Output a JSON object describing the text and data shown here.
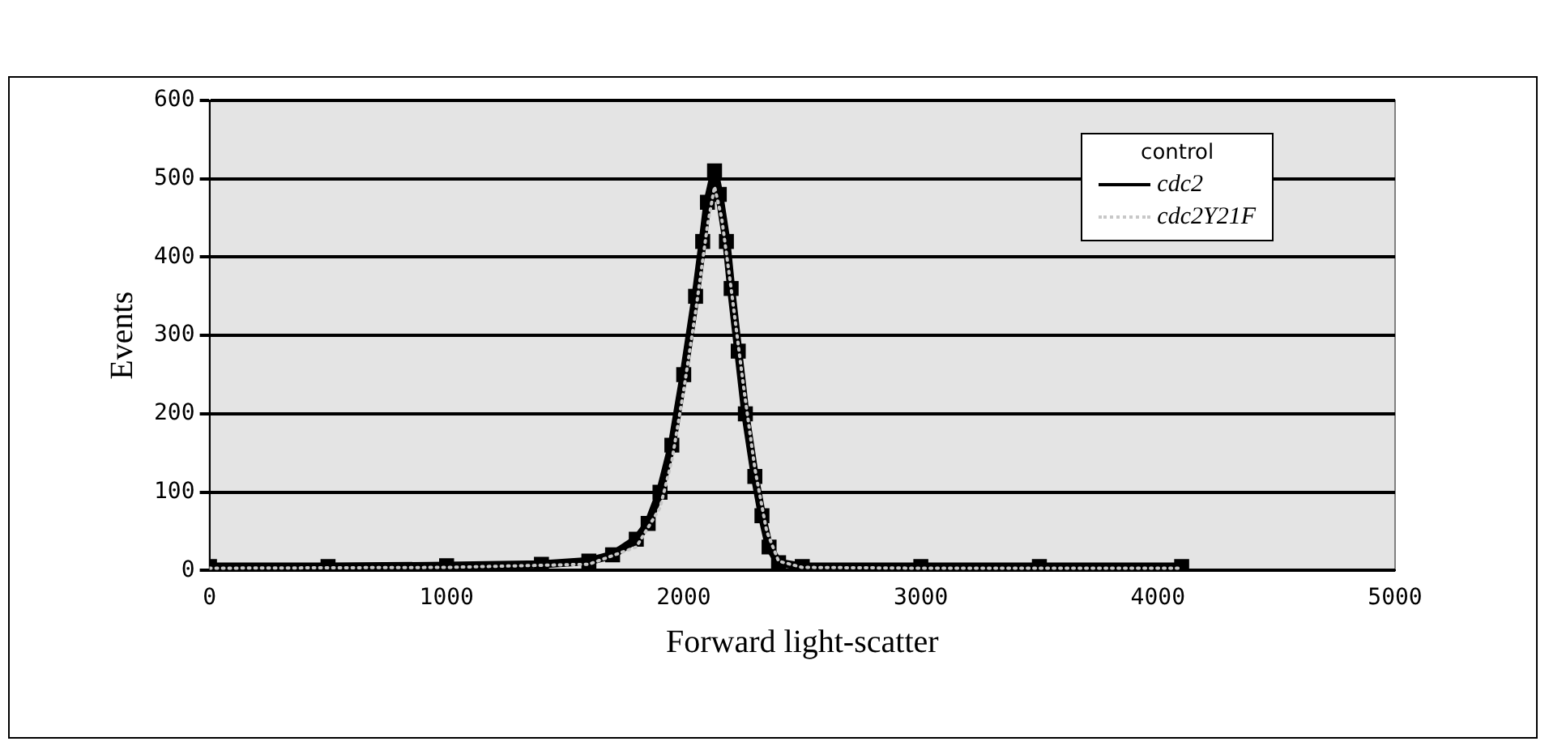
{
  "chart_data": {
    "type": "line",
    "xlabel": "Forward light-scatter",
    "ylabel": "Events",
    "legend_title": "control",
    "legend": "top right",
    "grid": "y",
    "xlim": [
      0,
      5000
    ],
    "xticks": [
      0,
      1000,
      2000,
      3000,
      4000,
      5000
    ],
    "ylim": [
      0,
      600
    ],
    "yticks": [
      0,
      100,
      200,
      300,
      400,
      500,
      600
    ],
    "series": [
      {
        "name": "cdc2",
        "color": "#000000",
        "marker": "square",
        "line_style": "solid",
        "x": [
          0,
          500,
          1000,
          1400,
          1600,
          1700,
          1800,
          1850,
          1900,
          1950,
          2000,
          2050,
          2080,
          2100,
          2130,
          2150,
          2180,
          2200,
          2230,
          2260,
          2300,
          2330,
          2360,
          2400,
          2500,
          3000,
          3500,
          4100
        ],
        "values": [
          5,
          5,
          6,
          8,
          12,
          20,
          40,
          60,
          100,
          160,
          250,
          350,
          420,
          470,
          510,
          480,
          420,
          360,
          280,
          200,
          120,
          70,
          30,
          10,
          5,
          5,
          5,
          5
        ]
      },
      {
        "name": "cdc2Y21F",
        "color": "#c8c8c8",
        "marker": "none",
        "line_style": "dotted",
        "x": [
          0,
          1000,
          1600,
          1800,
          1900,
          1950,
          2000,
          2050,
          2100,
          2130,
          2160,
          2200,
          2250,
          2300,
          2350,
          2400,
          2500,
          3000,
          4100
        ],
        "values": [
          3,
          4,
          8,
          30,
          80,
          140,
          230,
          330,
          440,
          490,
          450,
          360,
          240,
          130,
          50,
          12,
          4,
          3,
          3
        ]
      }
    ]
  }
}
